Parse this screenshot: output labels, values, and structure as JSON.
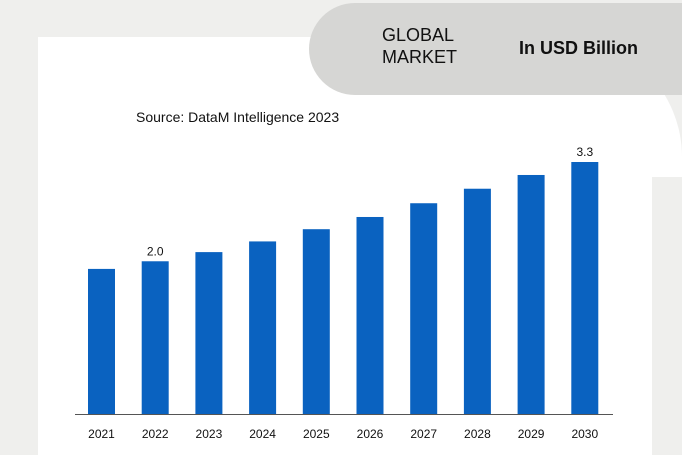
{
  "header": {
    "region_label": "GLOBAL MARKET",
    "unit_label": "In USD Billion"
  },
  "source": "Source: DataM Intelligence 2023",
  "colors": {
    "bar": "#0a62c0",
    "background": "#efefed",
    "header_pill": "#d6d6d4"
  },
  "chart_data": {
    "type": "bar",
    "categories": [
      "2021",
      "2022",
      "2023",
      "2024",
      "2025",
      "2026",
      "2027",
      "2028",
      "2029",
      "2030"
    ],
    "values": [
      1.9,
      2.0,
      2.12,
      2.26,
      2.42,
      2.58,
      2.76,
      2.95,
      3.13,
      3.3
    ],
    "data_labels": [
      {
        "index": 1,
        "text": "2.0"
      },
      {
        "index": 9,
        "text": "3.3"
      }
    ],
    "ylim": [
      0,
      3.3
    ],
    "grid": false,
    "legend": "none"
  }
}
